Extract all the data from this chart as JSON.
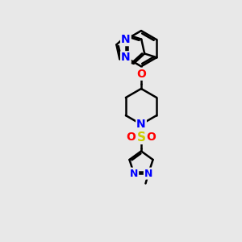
{
  "bg_color": "#e8e8e8",
  "bond_color": "#000000",
  "bond_width": 1.8,
  "atom_colors": {
    "N": "#0000ff",
    "O": "#ff0000",
    "S": "#cccc00",
    "C": "#000000"
  },
  "font_size": 9,
  "fig_size": [
    3.0,
    3.0
  ],
  "dpi": 100
}
